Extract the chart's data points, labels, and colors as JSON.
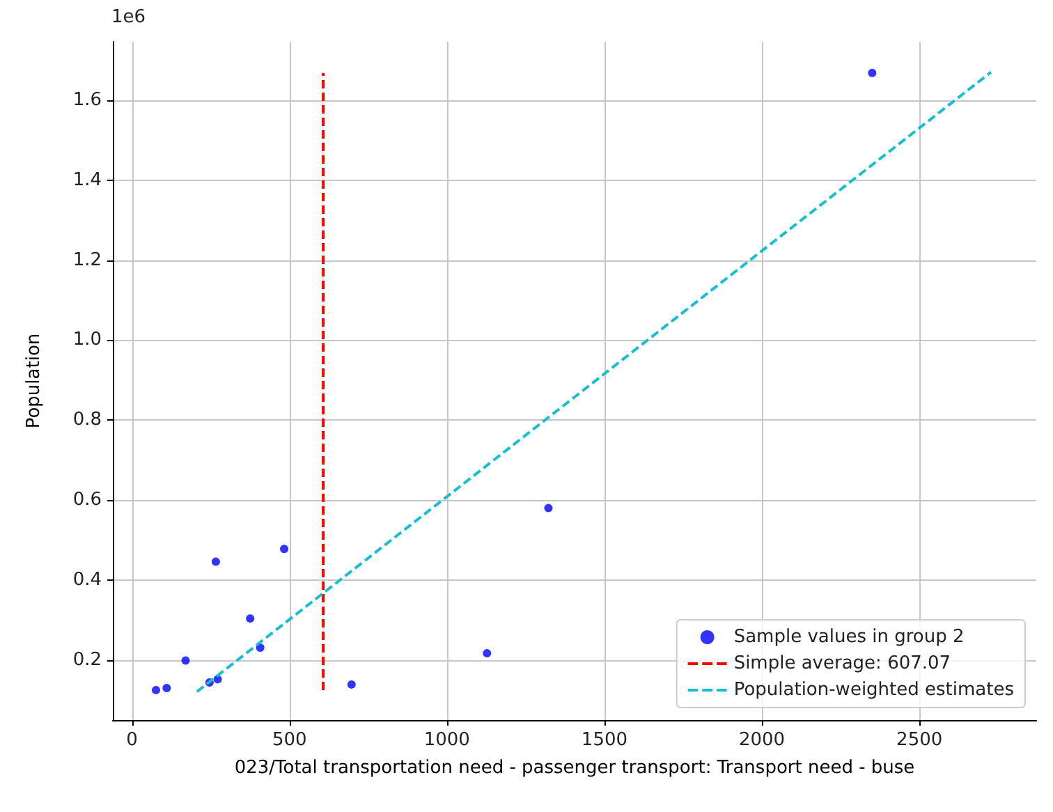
{
  "chart_data": {
    "type": "scatter",
    "xlabel": "023/Total transportation need - passenger transport: Transport need - buse",
    "ylabel": "Population",
    "annotations": [
      "1e6"
    ],
    "xlim": [
      -61,
      2871
    ],
    "xticks": [
      0,
      500,
      1000,
      1500,
      2000,
      2500
    ],
    "ylim": [
      0.05,
      1.746
    ],
    "yticks": [
      0.2,
      0.4,
      0.6,
      0.8,
      {
        "value": 1,
        "label": "1.0"
      },
      1.2,
      1.4,
      1.6
    ],
    "grid": true,
    "legend": "bottom right",
    "marker": "circle",
    "series": [
      {
        "name": "Sample values in group 2",
        "color": "#0000ff",
        "x": [
          76,
          110,
          170,
          246,
          272,
          266,
          375,
          407,
          483,
          697,
          1127,
          1322,
          2350
        ],
        "values": [
          0.125,
          0.13,
          0.199,
          0.144,
          0.152,
          0.446,
          0.304,
          0.231,
          0.478,
          0.139,
          0.217,
          0.58,
          1.668
        ]
      },
      {
        "name": "Simple average: 607.07",
        "type": "line",
        "color": "#ff0000",
        "line_style": "dashed",
        "marker": "none",
        "x": [
          607.07,
          607.07
        ],
        "values": [
          0.125,
          1.668
        ]
      },
      {
        "name": "Population-weighted estimates",
        "type": "line",
        "color": "#17becf",
        "line_style": "dashed",
        "marker": "none",
        "x": [
          206,
          2727
        ],
        "values": [
          0.121,
          1.67
        ]
      }
    ]
  }
}
